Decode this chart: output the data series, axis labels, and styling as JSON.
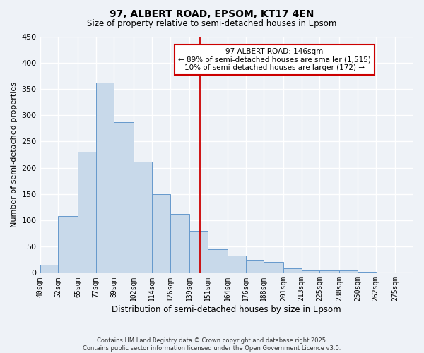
{
  "title": "97, ALBERT ROAD, EPSOM, KT17 4EN",
  "subtitle": "Size of property relative to semi-detached houses in Epsom",
  "xlabel": "Distribution of semi-detached houses by size in Epsom",
  "ylabel": "Number of semi-detached properties",
  "bins": [
    40,
    52,
    65,
    77,
    89,
    102,
    114,
    126,
    139,
    151,
    164,
    176,
    188,
    201,
    213,
    225,
    238,
    250,
    262,
    275,
    287
  ],
  "values": [
    15,
    108,
    230,
    362,
    287,
    212,
    150,
    112,
    80,
    45,
    33,
    25,
    20,
    9,
    4,
    5,
    5,
    2,
    1,
    0
  ],
  "bar_color": "#c8d9ea",
  "bar_edge_color": "#6699cc",
  "vline_x": 146,
  "vline_color": "#cc0000",
  "annotation_title": "97 ALBERT ROAD: 146sqm",
  "annotation_line2": "← 89% of semi-detached houses are smaller (1,515)",
  "annotation_line3": "10% of semi-detached houses are larger (172) →",
  "annotation_box_facecolor": "#ffffff",
  "annotation_box_edgecolor": "#cc0000",
  "ylim": [
    0,
    450
  ],
  "yticks": [
    0,
    50,
    100,
    150,
    200,
    250,
    300,
    350,
    400,
    450
  ],
  "footnote1": "Contains HM Land Registry data © Crown copyright and database right 2025.",
  "footnote2": "Contains public sector information licensed under the Open Government Licence v3.0.",
  "bg_color": "#eef2f7",
  "grid_color": "#ffffff"
}
